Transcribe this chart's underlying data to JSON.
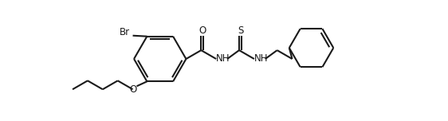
{
  "background_color": "#ffffff",
  "line_color": "#1a1a1a",
  "line_width": 1.5,
  "figsize": [
    5.62,
    1.52
  ],
  "dpi": 100,
  "xlim": [
    0,
    562
  ],
  "ylim": [
    0,
    152
  ]
}
